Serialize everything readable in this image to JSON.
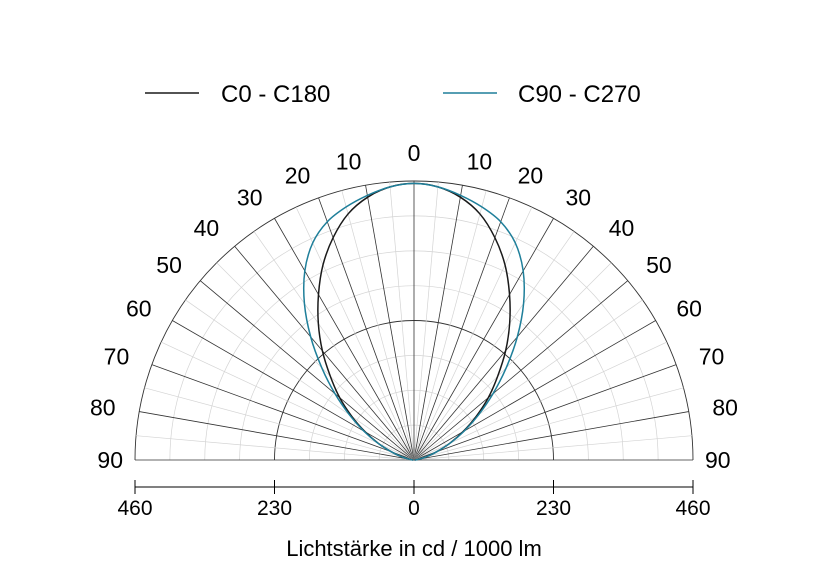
{
  "chart_data": {
    "type": "polar",
    "xlabel": "Lichtstärke in cd / 1000 lm",
    "radial_max": 460,
    "radial_ticks": [
      "460",
      "230",
      "0",
      "230",
      "460"
    ],
    "angle_labels": [
      "0",
      "10",
      "20",
      "30",
      "40",
      "50",
      "60",
      "70",
      "80",
      "90"
    ],
    "legend_position": "top",
    "series": [
      {
        "name": "C0 - C180",
        "color": "#1a1a1a",
        "angles": [
          0,
          5,
          10,
          15,
          20,
          25,
          30,
          35,
          40,
          45,
          50,
          55,
          60,
          65,
          70,
          75,
          80,
          85,
          90
        ],
        "values": [
          456,
          452,
          440,
          420,
          390,
          355,
          315,
          275,
          235,
          195,
          160,
          125,
          93,
          65,
          40,
          22,
          10,
          4,
          1
        ]
      },
      {
        "name": "C90 - C270",
        "color": "#1f7f9a",
        "angles": [
          0,
          5,
          10,
          15,
          20,
          25,
          30,
          35,
          40,
          45,
          50,
          55,
          60,
          65,
          70,
          75,
          80,
          85,
          90
        ],
        "values": [
          456,
          452,
          443,
          432,
          418,
          395,
          360,
          315,
          265,
          215,
          170,
          130,
          96,
          66,
          40,
          22,
          10,
          4,
          1
        ]
      }
    ]
  }
}
